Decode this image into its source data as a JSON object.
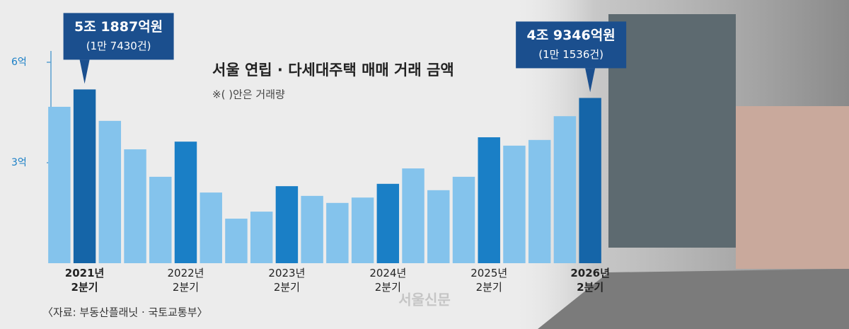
{
  "chart_data": {
    "type": "bar",
    "title": "서울 연립 · 다세대주택 매매 거래 금액",
    "subtitle": "※( )안은 거래량",
    "source": "〈자료: 부동산플래닛 · 국토교통부〉",
    "watermark": "서울신문",
    "categories": [
      null,
      "2021년 2분기",
      null,
      null,
      null,
      "2022년 2분기",
      null,
      null,
      null,
      "2023년 2분기",
      null,
      null,
      null,
      "2024년 2분기",
      null,
      null,
      null,
      "2025년 2분기",
      null,
      null,
      null,
      "2026년 2분기"
    ],
    "values": [
      4.67,
      5.1887,
      4.25,
      3.4,
      2.58,
      3.63,
      2.11,
      1.33,
      1.54,
      2.3,
      2.01,
      1.8,
      1.96,
      2.37,
      2.83,
      2.18,
      2.58,
      3.76,
      3.51,
      3.68,
      4.39,
      4.9346
    ],
    "value_labels": [
      null,
      "5조 1887억원",
      null,
      null,
      null,
      null,
      null,
      null,
      null,
      null,
      null,
      null,
      null,
      null,
      null,
      null,
      null,
      null,
      null,
      null,
      null,
      "4조 9346억원"
    ],
    "count_labels": [
      null,
      "(1만 7430건)",
      null,
      null,
      null,
      null,
      null,
      null,
      null,
      null,
      null,
      null,
      null,
      null,
      null,
      null,
      null,
      null,
      null,
      null,
      null,
      "(1만 1536건)"
    ],
    "colors": [
      "#84c3ec",
      "#1565a8",
      "#84c3ec",
      "#84c3ec",
      "#84c3ec",
      "#1a7fc6",
      "#84c3ec",
      "#84c3ec",
      "#84c3ec",
      "#1a7fc6",
      "#84c3ec",
      "#84c3ec",
      "#84c3ec",
      "#1a7fc6",
      "#84c3ec",
      "#84c3ec",
      "#84c3ec",
      "#1a7fc6",
      "#84c3ec",
      "#84c3ec",
      "#84c3ec",
      "#1565a8"
    ],
    "ylim": [
      0,
      6
    ],
    "yticks": [
      {
        "value": 6,
        "label": "6억"
      },
      {
        "value": 3,
        "label": "3억"
      }
    ],
    "grid": false
  }
}
